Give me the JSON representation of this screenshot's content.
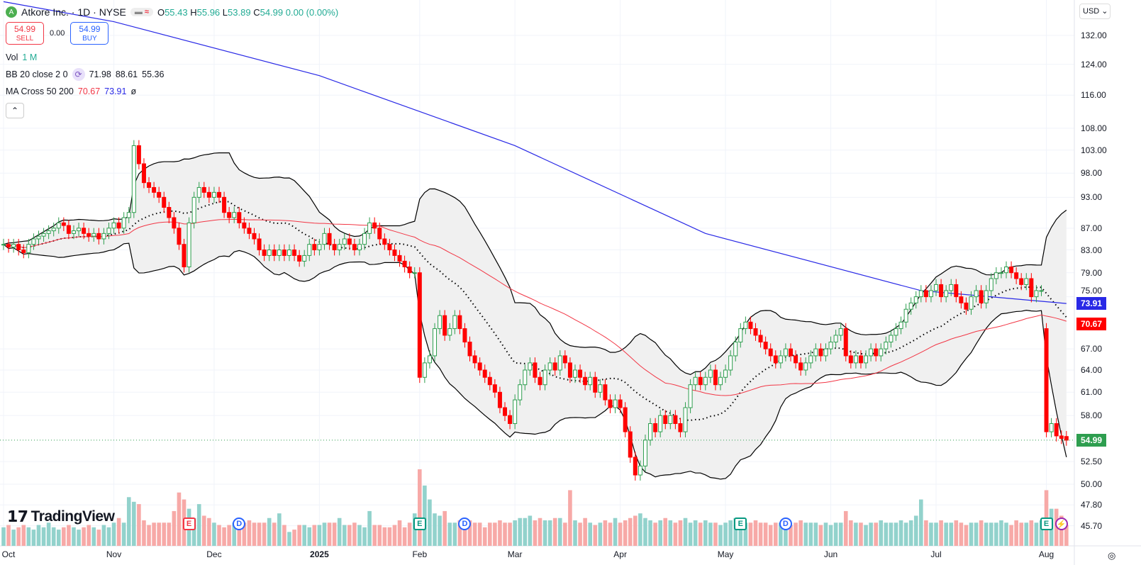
{
  "header": {
    "symbol": "Atkore Inc. · 1D · NYSE",
    "logo": "A",
    "open_label": "O",
    "open": "55.43",
    "high_label": "H",
    "high": "55.96",
    "low_label": "L",
    "low": "53.89",
    "close_label": "C",
    "close": "54.99",
    "change": "0.00 (0.00%)"
  },
  "trade": {
    "sell_price": "54.99",
    "sell_label": "SELL",
    "spread": "0.00",
    "buy_price": "54.99",
    "buy_label": "BUY"
  },
  "indicators": {
    "vol_label": "Vol",
    "vol_value": "1 M",
    "bb_label": "BB 20 close 2 0",
    "bb_basis": "71.98",
    "bb_upper": "88.61",
    "bb_lower": "55.36",
    "ma_label": "MA Cross 50 200",
    "ma50": "70.67",
    "ma200": "73.91",
    "ma_extra": "ø"
  },
  "currency": "USD",
  "brand": "TradingView",
  "colors": {
    "up": "#2e9e4f",
    "down": "#ff0000",
    "ma50": "#f23645",
    "ma200": "#2929e6",
    "bb": "#000000",
    "vol_up": "#92d2cc",
    "vol_down": "#f7a9a7",
    "last": "#2e9e4f"
  },
  "chart_data": {
    "type": "candlestick",
    "scale": "log",
    "ylim": [
      45.7,
      140
    ],
    "yticks": [
      "132.00",
      "124.00",
      "116.00",
      "108.00",
      "103.00",
      "98.00",
      "93.00",
      "87.00",
      "83.00",
      "79.00",
      "75.00",
      "67.00",
      "64.00",
      "61.00",
      "58.00",
      "52.50",
      "50.00",
      "47.80",
      "45.70"
    ],
    "month_ticks": [
      {
        "label": "Oct",
        "bar": 0
      },
      {
        "label": "Nov",
        "bar": 22
      },
      {
        "label": "Dec",
        "bar": 42
      },
      {
        "label": "2025",
        "bar": 63
      },
      {
        "label": "Feb",
        "bar": 83
      },
      {
        "label": "Mar",
        "bar": 102
      },
      {
        "label": "Apr",
        "bar": 123
      },
      {
        "label": "May",
        "bar": 144
      },
      {
        "label": "Jun",
        "bar": 165
      },
      {
        "label": "Jul",
        "bar": 186
      },
      {
        "label": "Aug",
        "bar": 208
      }
    ],
    "close": [
      84,
      83.5,
      84,
      83,
      82.5,
      84,
      85,
      85.5,
      86,
      86.5,
      87,
      88,
      87.5,
      86,
      86.5,
      87,
      86,
      85.5,
      86,
      85,
      86,
      87,
      88,
      87,
      89,
      90,
      104,
      100,
      96,
      95,
      94,
      93,
      91,
      89,
      87,
      84,
      80,
      88,
      93,
      95,
      94,
      93,
      94,
      93,
      90,
      89,
      90,
      88,
      87,
      86,
      85,
      83,
      82,
      83,
      82,
      83,
      82,
      83,
      82,
      81,
      82,
      84,
      83,
      84,
      86,
      84,
      83,
      84,
      85,
      84,
      83,
      84,
      86,
      88,
      87,
      85,
      84,
      83,
      82,
      81,
      80,
      79,
      79,
      63,
      65,
      66,
      70,
      72,
      69,
      70,
      72,
      70,
      68,
      66,
      65,
      64,
      63,
      62,
      61,
      59,
      58,
      57,
      60,
      62,
      64,
      65,
      63,
      62,
      64,
      65,
      64,
      66,
      65,
      63,
      64,
      63,
      62,
      63,
      61,
      62,
      60,
      59,
      60,
      59,
      56,
      53,
      51,
      52,
      55,
      57,
      56,
      58,
      57,
      58,
      57,
      56,
      59,
      62,
      63,
      62,
      63,
      64,
      62,
      63,
      64,
      66,
      68,
      70,
      71,
      70,
      69,
      68,
      67,
      66,
      65,
      66,
      67,
      66,
      65,
      64,
      65,
      66,
      67,
      66,
      67,
      68,
      69,
      70,
      66,
      65,
      66,
      65,
      66,
      67,
      66,
      67,
      68,
      69,
      70,
      71,
      73,
      74,
      75,
      76,
      75,
      76,
      77,
      75,
      76,
      77,
      75,
      74,
      73,
      75,
      76,
      74,
      76,
      78,
      79,
      79,
      80,
      79,
      78,
      77,
      78,
      75,
      76,
      76,
      56,
      57,
      55.5,
      55.2,
      54.99
    ],
    "volume_m": [
      0.8,
      0.9,
      0.7,
      0.8,
      0.9,
      0.8,
      0.7,
      0.9,
      0.8,
      1.0,
      0.8,
      0.7,
      0.8,
      0.9,
      0.8,
      0.7,
      0.8,
      0.9,
      0.8,
      0.7,
      0.9,
      0.8,
      1.0,
      1.2,
      1.0,
      2.1,
      1.9,
      1.8,
      1.1,
      0.9,
      1.0,
      1.0,
      1.0,
      1.0,
      1.5,
      2.3,
      2.0,
      1.6,
      1.2,
      1.8,
      1.3,
      1.2,
      1.0,
      0.9,
      0.8,
      0.9,
      1.0,
      0.9,
      1.0,
      1.1,
      1.0,
      1.0,
      1.0,
      1.2,
      1.0,
      1.4,
      0.9,
      0.6,
      0.7,
      0.9,
      0.9,
      0.8,
      0.9,
      0.9,
      1.0,
      1.0,
      1.0,
      1.2,
      0.9,
      0.9,
      1.0,
      0.9,
      0.8,
      1.5,
      0.9,
      0.9,
      0.8,
      0.8,
      0.9,
      1.1,
      0.8,
      1.0,
      1.4,
      3.3,
      2.6,
      2.0,
      1.4,
      1.3,
      1.5,
      1.0,
      1.0,
      1.1,
      1.2,
      1.1,
      1.0,
      1.0,
      0.8,
      1.0,
      1.0,
      1.1,
      1.0,
      1.0,
      1.1,
      1.2,
      1.2,
      1.3,
      1.1,
      1.2,
      1.1,
      1.1,
      1.2,
      1.2,
      1.0,
      2.4,
      1.1,
      1.0,
      1.2,
      1.0,
      0.9,
      1.0,
      1.1,
      1.0,
      1.2,
      1.0,
      1.1,
      1.2,
      1.3,
      1.4,
      1.2,
      1.1,
      1.0,
      1.1,
      1.2,
      1.1,
      1.0,
      1.1,
      1.2,
      1.0,
      1.1,
      1.0,
      1.1,
      1.0,
      1.0,
      0.9,
      1.0,
      1.1,
      1.2,
      1.1,
      1.0,
      1.0,
      1.1,
      1.0,
      1.0,
      0.9,
      1.0,
      1.0,
      1.0,
      0.9,
      1.0,
      1.1,
      1.0,
      1.0,
      1.0,
      0.9,
      1.0,
      0.9,
      1.0,
      1.0,
      1.5,
      1.1,
      1.0,
      1.0,
      0.9,
      1.0,
      1.0,
      1.1,
      1.0,
      1.0,
      1.0,
      1.1,
      1.0,
      1.1,
      1.3,
      2.0,
      1.1,
      1.0,
      1.0,
      1.1,
      1.0,
      1.0,
      1.1,
      1.0,
      0.9,
      1.0,
      1.0,
      1.1,
      1.0,
      1.0,
      1.0,
      1.1,
      1.0,
      0.9,
      1.1,
      1.0,
      1.0,
      1.1,
      1.0,
      1.1,
      2.4,
      1.6,
      1.6,
      1.3,
      0.9
    ],
    "ma200": [
      {
        "bar": 0,
        "v": 142
      },
      {
        "bar": 22,
        "v": 136
      },
      {
        "bar": 63,
        "v": 121
      },
      {
        "bar": 102,
        "v": 104
      },
      {
        "bar": 140,
        "v": 86
      },
      {
        "bar": 183,
        "v": 76
      },
      {
        "bar": 212,
        "v": 73.91
      }
    ],
    "last_price": "54.99",
    "ma50_last": "70.67",
    "ma200_last": "73.91",
    "events": [
      {
        "bar": 37,
        "label": "E",
        "kind": "earnings-miss"
      },
      {
        "bar": 47,
        "label": "D",
        "kind": "dividend"
      },
      {
        "bar": 83,
        "label": "E",
        "kind": "earnings-beat"
      },
      {
        "bar": 92,
        "label": "D",
        "kind": "dividend"
      },
      {
        "bar": 147,
        "label": "E",
        "kind": "earnings-beat"
      },
      {
        "bar": 156,
        "label": "D",
        "kind": "dividend"
      },
      {
        "bar": 208,
        "label": "E",
        "kind": "earnings-beat"
      },
      {
        "bar": 211,
        "label": "⚡",
        "kind": "alert"
      }
    ]
  }
}
